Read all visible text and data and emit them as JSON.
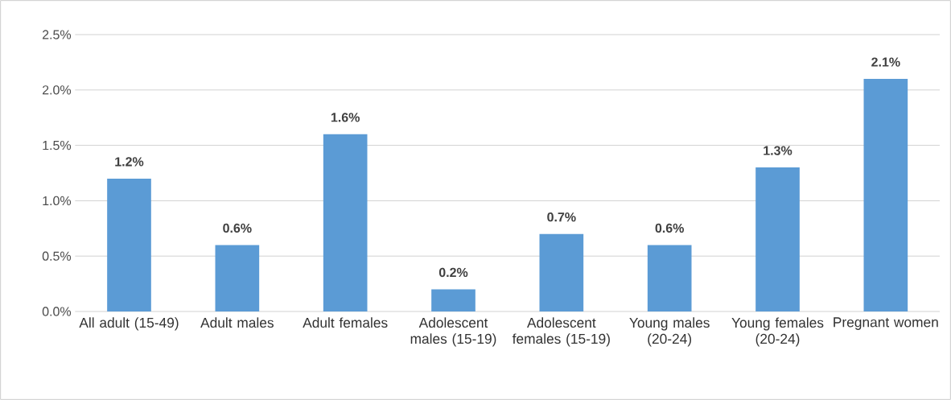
{
  "chart_data": {
    "type": "bar",
    "categories": [
      "All adult (15-49)",
      "Adult males",
      "Adult females",
      "Adolescent males (15-19)",
      "Adolescent females (15-19)",
      "Young males (20-24)",
      "Young females (20-24)",
      "Pregnant women"
    ],
    "values": [
      1.2,
      0.6,
      1.6,
      0.2,
      0.7,
      0.6,
      1.3,
      2.1
    ],
    "value_labels": [
      "1.2%",
      "0.6%",
      "1.6%",
      "0.2%",
      "0.7%",
      "0.6%",
      "1.3%",
      "2.1%"
    ],
    "color": "#5b9bd5",
    "ylim": [
      0,
      2.5
    ],
    "yticks": [
      {
        "value": 0,
        "label": "0.0%"
      },
      {
        "value": 0.5,
        "label": "0.5%"
      },
      {
        "value": 1.0,
        "label": "1.0%"
      },
      {
        "value": 1.5,
        "label": "1.5%"
      },
      {
        "value": 2.0,
        "label": "2.0%"
      },
      {
        "value": 2.5,
        "label": "2.5%"
      }
    ],
    "grid": "y"
  }
}
